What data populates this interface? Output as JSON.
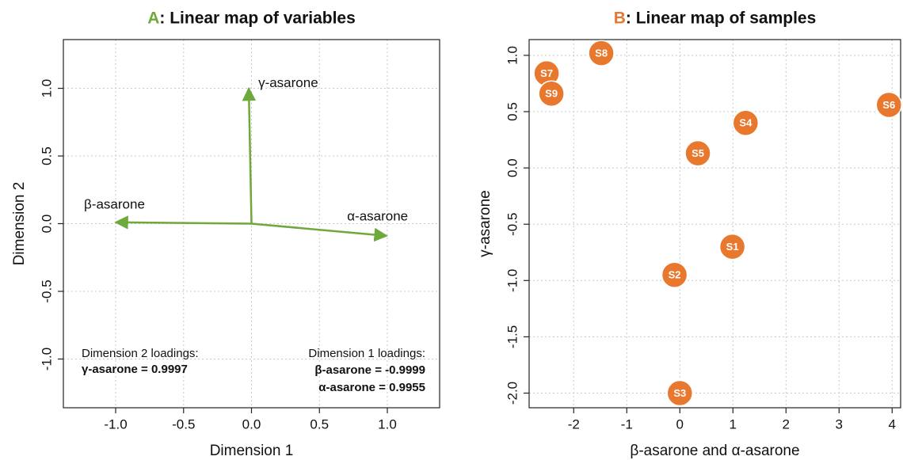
{
  "chart_data": [
    {
      "type": "vector",
      "panel": "A",
      "title": ": Linear map of variables",
      "panel_color": "#6fa83b",
      "xlabel": "Dimension 1",
      "ylabel": "Dimension 2",
      "color": "#6fa83b",
      "vectors": [
        {
          "name": "γ-asarone",
          "x": -0.02,
          "y": 0.9997
        },
        {
          "name": "β-asarone",
          "x": -0.9999,
          "y": 0.01
        },
        {
          "name": "α-asarone",
          "x": 0.9955,
          "y": -0.09
        }
      ],
      "xlim": [
        -1.385,
        1.385
      ],
      "ylim": [
        -1.36,
        1.36
      ],
      "xticks": [
        {
          "value": -1,
          "label": "-1.0"
        },
        -0.5,
        {
          "value": 0,
          "label": "0.0"
        },
        0.5,
        {
          "value": 1,
          "label": "1.0"
        }
      ],
      "yticks": [
        {
          "value": -1,
          "label": "-1.0"
        },
        -0.5,
        {
          "value": 0,
          "label": "0.0"
        },
        0.5,
        {
          "value": 1,
          "label": "1.0"
        }
      ],
      "grid": true,
      "annotations": [
        "Dimension 2 loadings:",
        "γ-asarone = 0.9997",
        "Dimension 1 loadings:",
        "β-asarone = -0.9999",
        "α-asarone = 0.9955"
      ]
    },
    {
      "type": "scatter",
      "panel": "B",
      "title": ": Linear map of samples",
      "panel_color": "#e8782e",
      "xlabel": "β-asarone and α-asarone",
      "ylabel": "γ-asarone",
      "color": "#e8782e",
      "labels": [
        "S1",
        "S2",
        "S3",
        "S4",
        "S5",
        "S6",
        "S7",
        "S8",
        "S9"
      ],
      "x": [
        0.99,
        -0.1,
        0.0,
        1.24,
        0.34,
        3.94,
        -2.51,
        -1.48,
        -2.42
      ],
      "y": [
        -0.7,
        -0.95,
        -2.0,
        0.4,
        0.13,
        0.56,
        0.84,
        1.02,
        0.66
      ],
      "xlim": [
        -2.84,
        4.16
      ],
      "ylim": [
        -2.13,
        1.14
      ],
      "xticks": [
        -2,
        -1,
        0,
        1,
        2,
        3,
        4
      ],
      "yticks": [
        {
          "value": -2,
          "label": "-2.0"
        },
        -1.5,
        {
          "value": -1,
          "label": "-1.0"
        },
        -0.5,
        {
          "value": 0,
          "label": "0.0"
        },
        0.5,
        {
          "value": 1,
          "label": "1.0"
        }
      ],
      "grid": true
    }
  ]
}
